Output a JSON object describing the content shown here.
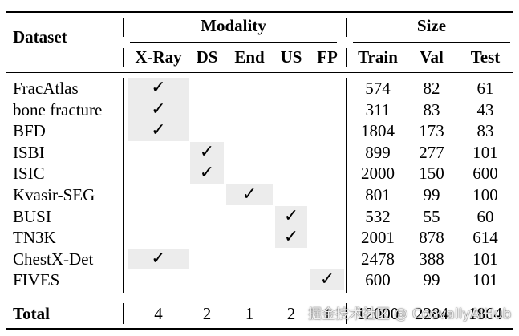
{
  "headers": {
    "dataset": "Dataset",
    "modality": "Modality",
    "size": "Size",
    "modality_cols": [
      "X-Ray",
      "DS",
      "End",
      "US",
      "FP"
    ],
    "size_cols": [
      "Train",
      "Val",
      "Test"
    ]
  },
  "check_symbol": "✓",
  "shade_color": "#ececec",
  "rows": [
    {
      "name": "FracAtlas",
      "modality": 0,
      "train": "574",
      "val": "82",
      "test": "61"
    },
    {
      "name": "bone fracture",
      "modality": 0,
      "train": "311",
      "val": "83",
      "test": "43"
    },
    {
      "name": "BFD",
      "modality": 0,
      "train": "1804",
      "val": "173",
      "test": "83"
    },
    {
      "name": "ISBI",
      "modality": 1,
      "train": "899",
      "val": "277",
      "test": "101"
    },
    {
      "name": "ISIC",
      "modality": 1,
      "train": "2000",
      "val": "150",
      "test": "600"
    },
    {
      "name": "Kvasir-SEG",
      "modality": 2,
      "train": "801",
      "val": "99",
      "test": "100"
    },
    {
      "name": "BUSI",
      "modality": 3,
      "train": "532",
      "val": "55",
      "test": "60"
    },
    {
      "name": "TN3K",
      "modality": 3,
      "train": "2001",
      "val": "878",
      "test": "614"
    },
    {
      "name": "ChestX-Det",
      "modality": 0,
      "train": "2478",
      "val": "388",
      "test": "101"
    },
    {
      "name": "FIVES",
      "modality": 4,
      "train": "600",
      "val": "99",
      "test": "101"
    }
  ],
  "total": {
    "label": "Total",
    "modality_counts": [
      "4",
      "2",
      "1",
      "2",
      "1"
    ],
    "train": "12000",
    "val": "2284",
    "test": "1864"
  },
  "watermark": "掘金技术社区 @ CoovallyAIHub"
}
